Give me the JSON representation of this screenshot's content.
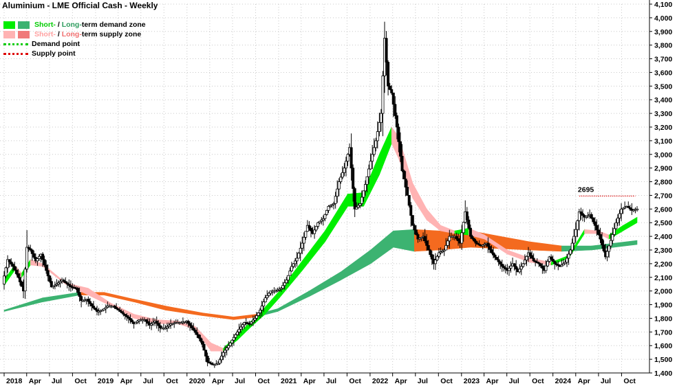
{
  "chart_data": {
    "type": "line",
    "title": "Aluminium - LME Official Cash - Weekly",
    "ylim": [
      1400,
      4100
    ],
    "yticks": [
      1400,
      1500,
      1600,
      1700,
      1800,
      1900,
      2000,
      2100,
      2200,
      2300,
      2400,
      2500,
      2600,
      2700,
      2800,
      2900,
      3000,
      3100,
      3200,
      3300,
      3400,
      3500,
      3600,
      3700,
      3800,
      3900,
      4000,
      4100
    ],
    "ytick_labels": [
      "1,400",
      "1,500",
      "1,600",
      "1,700",
      "1,800",
      "1,900",
      "2,000",
      "2,100",
      "2,200",
      "2,300",
      "2,400",
      "2,500",
      "2,600",
      "2,700",
      "2,800",
      "2,900",
      "3,000",
      "3,100",
      "3,200",
      "3,300",
      "3,400",
      "3,500",
      "3,600",
      "3,700",
      "3,800",
      "3,900",
      "4,000",
      "4,100"
    ],
    "xticks": [
      {
        "label": "2018",
        "date": "2018-01"
      },
      {
        "label": "Apr",
        "date": "2018-04"
      },
      {
        "label": "Jul",
        "date": "2018-07"
      },
      {
        "label": "Oct",
        "date": "2018-10"
      },
      {
        "label": "2019",
        "date": "2019-01"
      },
      {
        "label": "Apr",
        "date": "2019-04"
      },
      {
        "label": "Jul",
        "date": "2019-07"
      },
      {
        "label": "Oct",
        "date": "2019-10"
      },
      {
        "label": "2020",
        "date": "2020-01"
      },
      {
        "label": "Apr",
        "date": "2020-04"
      },
      {
        "label": "Jul",
        "date": "2020-07"
      },
      {
        "label": "Oct",
        "date": "2020-10"
      },
      {
        "label": "2021",
        "date": "2021-01"
      },
      {
        "label": "Apr",
        "date": "2021-04"
      },
      {
        "label": "Jul",
        "date": "2021-07"
      },
      {
        "label": "Oct",
        "date": "2021-10"
      },
      {
        "label": "2022",
        "date": "2022-01"
      },
      {
        "label": "Apr",
        "date": "2022-04"
      },
      {
        "label": "Jul",
        "date": "2022-07"
      },
      {
        "label": "Oct",
        "date": "2022-10"
      },
      {
        "label": "2023",
        "date": "2023-01"
      },
      {
        "label": "Apr",
        "date": "2023-04"
      },
      {
        "label": "Jul",
        "date": "2023-07"
      },
      {
        "label": "Oct",
        "date": "2023-10"
      },
      {
        "label": "2024",
        "date": "2024-01"
      },
      {
        "label": "Apr",
        "date": "2024-04"
      },
      {
        "label": "Jul",
        "date": "2024-07"
      },
      {
        "label": "Oct",
        "date": "2024-10"
      }
    ],
    "grid": true,
    "legend": {
      "position": "top-left",
      "items": [
        {
          "short": "Short-",
          "sep": " / ",
          "long": "Long-",
          "rest": "term demand zone",
          "short_color": "#00ee00",
          "long_color": "#3cb371"
        },
        {
          "short": "Short-",
          "sep": " / ",
          "long": "Long-",
          "rest": "term supply zone",
          "short_color": "#ffb3b3",
          "long_color": "#f07a7a"
        },
        {
          "label": "Demand point",
          "color": "#00cc00"
        },
        {
          "label": "Supply point",
          "color": "#dd0000"
        }
      ]
    },
    "colors": {
      "short_demand": "#00ee00",
      "long_demand": "#3cb371",
      "short_supply": "#ffb3b3",
      "long_supply": "#f07a7a",
      "long_supply_alt": "#f46a1f",
      "candles": "#000000"
    },
    "supply_point": {
      "label": "2695",
      "value": 2695,
      "start_date": "2024-04-15",
      "end_date": "2024-11-25"
    },
    "price_path": [
      [
        "2018-01-01",
        2050
      ],
      [
        "2018-01-22",
        2230
      ],
      [
        "2018-02-12",
        2180
      ],
      [
        "2018-03-05",
        2100
      ],
      [
        "2018-03-26",
        2000
      ],
      [
        "2018-04-09",
        2320
      ],
      [
        "2018-04-23",
        2300
      ],
      [
        "2018-05-14",
        2220
      ],
      [
        "2018-06-04",
        2270
      ],
      [
        "2018-06-25",
        2150
      ],
      [
        "2018-07-16",
        2030
      ],
      [
        "2018-08-06",
        2050
      ],
      [
        "2018-08-27",
        2080
      ],
      [
        "2018-09-17",
        2050
      ],
      [
        "2018-10-01",
        2030
      ],
      [
        "2018-10-22",
        2020
      ],
      [
        "2018-11-12",
        1930
      ],
      [
        "2018-12-03",
        1940
      ],
      [
        "2018-12-24",
        1890
      ],
      [
        "2019-01-14",
        1850
      ],
      [
        "2019-02-04",
        1860
      ],
      [
        "2019-02-25",
        1890
      ],
      [
        "2019-03-18",
        1890
      ],
      [
        "2019-04-08",
        1860
      ],
      [
        "2019-04-29",
        1830
      ],
      [
        "2019-05-20",
        1800
      ],
      [
        "2019-06-10",
        1760
      ],
      [
        "2019-07-01",
        1790
      ],
      [
        "2019-07-22",
        1790
      ],
      [
        "2019-08-12",
        1750
      ],
      [
        "2019-09-02",
        1780
      ],
      [
        "2019-09-23",
        1730
      ],
      [
        "2019-10-14",
        1730
      ],
      [
        "2019-11-04",
        1760
      ],
      [
        "2019-11-25",
        1770
      ],
      [
        "2019-12-16",
        1770
      ],
      [
        "2020-01-06",
        1780
      ],
      [
        "2020-01-27",
        1730
      ],
      [
        "2020-02-17",
        1680
      ],
      [
        "2020-03-09",
        1610
      ],
      [
        "2020-03-30",
        1480
      ],
      [
        "2020-04-20",
        1460
      ],
      [
        "2020-05-11",
        1470
      ],
      [
        "2020-06-01",
        1550
      ],
      [
        "2020-06-22",
        1600
      ],
      [
        "2020-07-13",
        1660
      ],
      [
        "2020-08-03",
        1720
      ],
      [
        "2020-08-24",
        1770
      ],
      [
        "2020-09-14",
        1760
      ],
      [
        "2020-10-05",
        1800
      ],
      [
        "2020-10-26",
        1860
      ],
      [
        "2020-11-16",
        1950
      ],
      [
        "2020-12-07",
        2000
      ],
      [
        "2020-12-28",
        2000
      ],
      [
        "2021-01-18",
        2020
      ],
      [
        "2021-02-08",
        2080
      ],
      [
        "2021-03-01",
        2180
      ],
      [
        "2021-03-22",
        2240
      ],
      [
        "2021-04-12",
        2350
      ],
      [
        "2021-05-03",
        2480
      ],
      [
        "2021-05-24",
        2420
      ],
      [
        "2021-06-14",
        2500
      ],
      [
        "2021-07-05",
        2530
      ],
      [
        "2021-07-26",
        2620
      ],
      [
        "2021-08-16",
        2640
      ],
      [
        "2021-09-06",
        2800
      ],
      [
        "2021-09-27",
        2900
      ],
      [
        "2021-10-18",
        3050
      ],
      [
        "2021-11-08",
        2600
      ],
      [
        "2021-11-29",
        2640
      ],
      [
        "2021-12-20",
        2780
      ],
      [
        "2022-01-10",
        2950
      ],
      [
        "2022-01-31",
        3100
      ],
      [
        "2022-02-21",
        3300
      ],
      [
        "2022-03-07",
        3850
      ],
      [
        "2022-03-21",
        3500
      ],
      [
        "2022-04-04",
        3450
      ],
      [
        "2022-04-25",
        3200
      ],
      [
        "2022-05-16",
        2880
      ],
      [
        "2022-06-06",
        2700
      ],
      [
        "2022-06-27",
        2480
      ],
      [
        "2022-07-18",
        2380
      ],
      [
        "2022-08-08",
        2400
      ],
      [
        "2022-08-29",
        2300
      ],
      [
        "2022-09-19",
        2200
      ],
      [
        "2022-10-10",
        2280
      ],
      [
        "2022-10-31",
        2300
      ],
      [
        "2022-11-21",
        2400
      ],
      [
        "2022-12-12",
        2400
      ],
      [
        "2023-01-02",
        2350
      ],
      [
        "2023-01-23",
        2580
      ],
      [
        "2023-02-13",
        2400
      ],
      [
        "2023-03-06",
        2350
      ],
      [
        "2023-03-27",
        2330
      ],
      [
        "2023-04-17",
        2350
      ],
      [
        "2023-05-08",
        2280
      ],
      [
        "2023-05-29",
        2230
      ],
      [
        "2023-06-19",
        2180
      ],
      [
        "2023-07-10",
        2150
      ],
      [
        "2023-07-31",
        2200
      ],
      [
        "2023-08-21",
        2140
      ],
      [
        "2023-09-11",
        2200
      ],
      [
        "2023-10-02",
        2280
      ],
      [
        "2023-10-23",
        2220
      ],
      [
        "2023-11-13",
        2200
      ],
      [
        "2023-12-04",
        2150
      ],
      [
        "2023-12-25",
        2250
      ],
      [
        "2024-01-15",
        2200
      ],
      [
        "2024-02-05",
        2180
      ],
      [
        "2024-02-26",
        2210
      ],
      [
        "2024-03-18",
        2300
      ],
      [
        "2024-04-08",
        2450
      ],
      [
        "2024-04-22",
        2580
      ],
      [
        "2024-05-13",
        2540
      ],
      [
        "2024-06-03",
        2560
      ],
      [
        "2024-06-24",
        2480
      ],
      [
        "2024-07-15",
        2380
      ],
      [
        "2024-08-05",
        2250
      ],
      [
        "2024-08-26",
        2370
      ],
      [
        "2024-09-16",
        2500
      ],
      [
        "2024-10-07",
        2600
      ],
      [
        "2024-10-28",
        2620
      ],
      [
        "2024-11-18",
        2590
      ],
      [
        "2024-12-02",
        2600
      ]
    ],
    "short_term_zone": [
      [
        "2018-01-01",
        2040,
        2080,
        "demand"
      ],
      [
        "2018-02-12",
        2150,
        2190,
        "demand"
      ],
      [
        "2018-03-12",
        2100,
        2130,
        "supply"
      ],
      [
        "2018-04-16",
        2190,
        2230,
        "demand"
      ],
      [
        "2018-06-04",
        2180,
        2200,
        "supply"
      ],
      [
        "2018-09-03",
        2050,
        2060,
        "supply"
      ],
      [
        "2018-12-03",
        1970,
        2020,
        "supply"
      ],
      [
        "2019-03-04",
        1890,
        1910,
        "supply"
      ],
      [
        "2019-06-03",
        1800,
        1830,
        "supply"
      ],
      [
        "2019-09-02",
        1760,
        1790,
        "supply"
      ],
      [
        "2019-11-25",
        1760,
        1780,
        "supply"
      ],
      [
        "2020-02-03",
        1720,
        1740,
        "supply"
      ],
      [
        "2020-04-06",
        1560,
        1620,
        "supply"
      ],
      [
        "2020-05-25",
        1560,
        1580,
        "supply"
      ],
      [
        "2020-07-20",
        1640,
        1680,
        "demand"
      ],
      [
        "2020-09-14",
        1740,
        1780,
        "demand"
      ],
      [
        "2020-11-02",
        1820,
        1870,
        "demand"
      ],
      [
        "2021-01-04",
        1950,
        2000,
        "demand"
      ],
      [
        "2021-04-05",
        2150,
        2220,
        "demand"
      ],
      [
        "2021-07-05",
        2360,
        2440,
        "demand"
      ],
      [
        "2021-10-04",
        2620,
        2710,
        "demand"
      ],
      [
        "2021-12-06",
        2620,
        2720,
        "demand"
      ],
      [
        "2022-02-07",
        2850,
        3000,
        "demand"
      ],
      [
        "2022-03-28",
        3080,
        3200,
        "demand"
      ],
      [
        "2022-04-25",
        2970,
        3130,
        "supply"
      ],
      [
        "2022-06-20",
        2680,
        2790,
        "supply"
      ],
      [
        "2022-08-15",
        2520,
        2600,
        "supply"
      ],
      [
        "2022-10-10",
        2440,
        2480,
        "supply"
      ],
      [
        "2022-12-05",
        2420,
        2440,
        "supply"
      ],
      [
        "2023-01-30",
        2410,
        2460,
        "demand"
      ],
      [
        "2023-04-03",
        2380,
        2410,
        "supply"
      ],
      [
        "2023-07-03",
        2270,
        2300,
        "supply"
      ],
      [
        "2023-10-02",
        2210,
        2240,
        "supply"
      ],
      [
        "2023-12-25",
        2190,
        2210,
        "supply"
      ],
      [
        "2024-03-04",
        2240,
        2260,
        "demand"
      ],
      [
        "2024-05-06",
        2420,
        2450,
        "demand"
      ],
      [
        "2024-07-01",
        2420,
        2440,
        "supply"
      ],
      [
        "2024-08-12",
        2380,
        2410,
        "supply"
      ],
      [
        "2024-10-07",
        2440,
        2480,
        "demand"
      ],
      [
        "2024-12-02",
        2500,
        2540,
        "demand"
      ]
    ],
    "long_term_zone": [
      [
        "2018-01-01",
        1850,
        1860,
        "demand"
      ],
      [
        "2018-06-04",
        1920,
        1950,
        "demand"
      ],
      [
        "2018-10-29",
        1970,
        1990,
        "demand"
      ],
      [
        "2019-02-04",
        1970,
        1990,
        "supply"
      ],
      [
        "2019-06-03",
        1920,
        1940,
        "supply"
      ],
      [
        "2019-10-07",
        1860,
        1890,
        "supply"
      ],
      [
        "2020-03-02",
        1820,
        1840,
        "supply"
      ],
      [
        "2020-07-06",
        1790,
        1810,
        "supply"
      ],
      [
        "2020-10-05",
        1810,
        1830,
        "supply"
      ],
      [
        "2020-12-28",
        1850,
        1870,
        "demand"
      ],
      [
        "2021-05-03",
        1960,
        2000,
        "demand"
      ],
      [
        "2021-09-06",
        2080,
        2140,
        "demand"
      ],
      [
        "2022-01-03",
        2200,
        2300,
        "demand"
      ],
      [
        "2022-04-04",
        2320,
        2440,
        "demand"
      ],
      [
        "2022-06-27",
        2290,
        2450,
        "demand"
      ],
      [
        "2022-10-03",
        2300,
        2440,
        "supply"
      ],
      [
        "2023-02-06",
        2320,
        2440,
        "supply"
      ],
      [
        "2023-06-05",
        2310,
        2400,
        "supply"
      ],
      [
        "2023-10-02",
        2300,
        2360,
        "supply"
      ],
      [
        "2024-02-05",
        2290,
        2330,
        "supply"
      ],
      [
        "2024-06-03",
        2300,
        2330,
        "demand"
      ],
      [
        "2024-12-02",
        2340,
        2370,
        "demand"
      ]
    ]
  }
}
